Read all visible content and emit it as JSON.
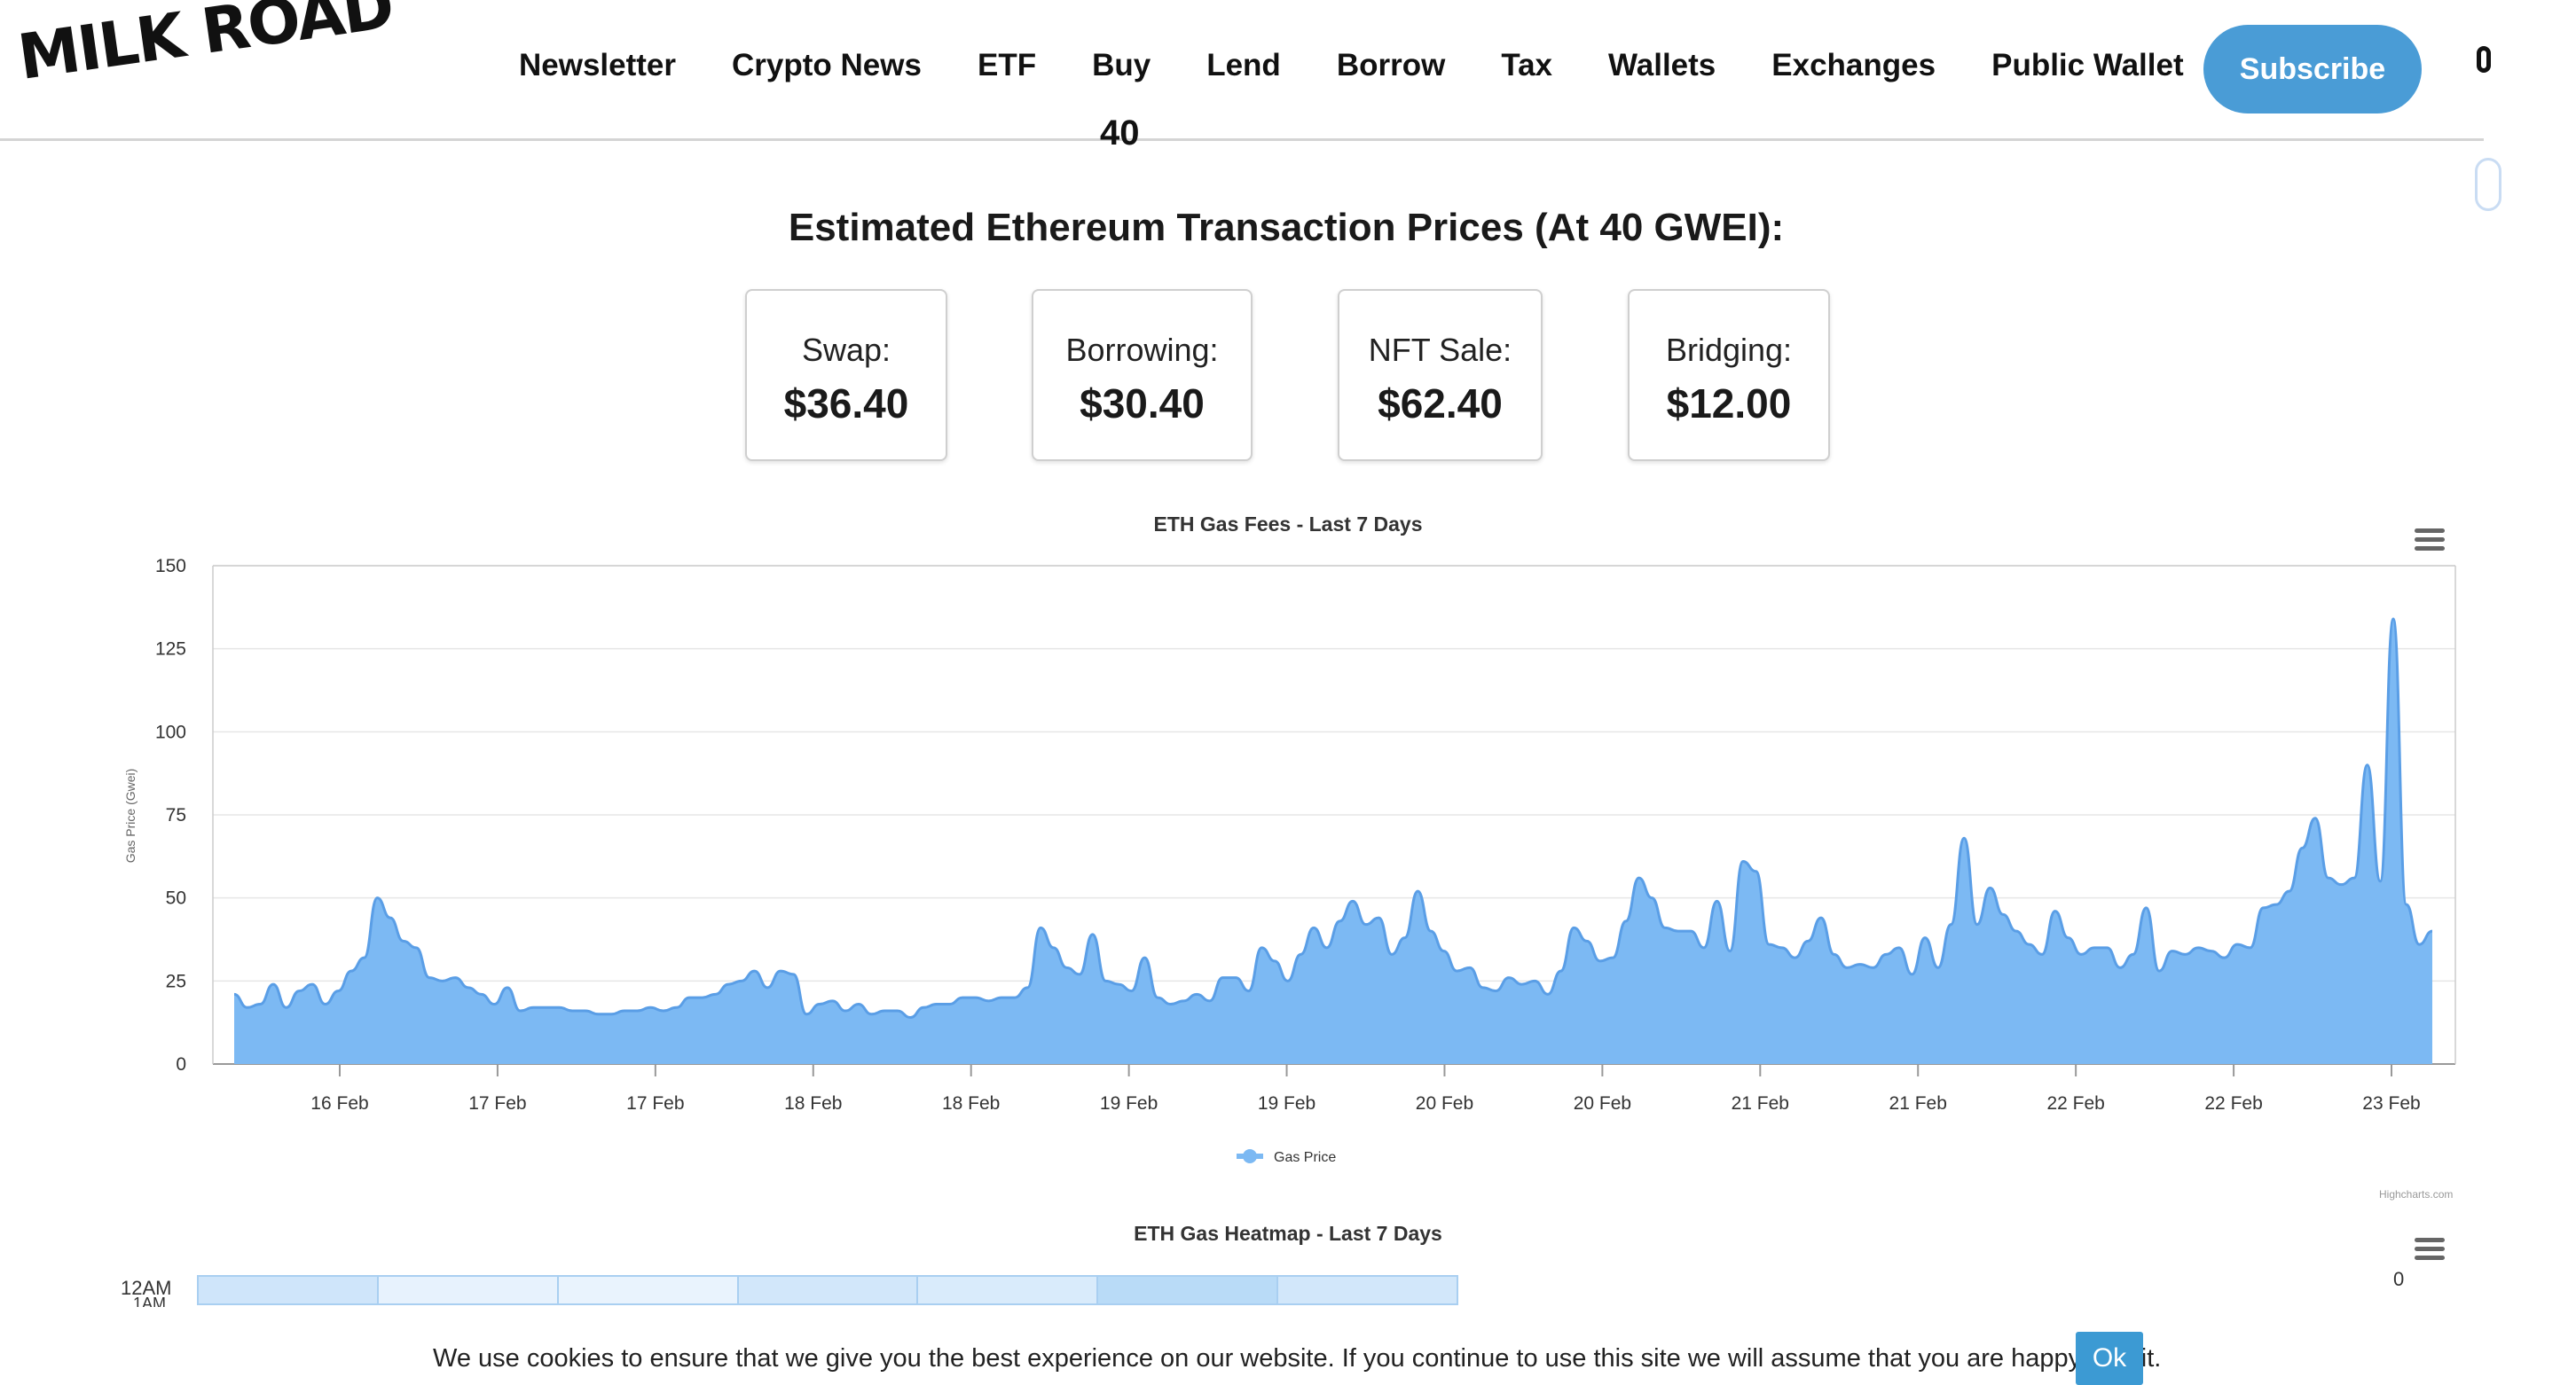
{
  "header": {
    "logo": "MILK ROAD",
    "nav": [
      "Newsletter",
      "Crypto News",
      "ETF",
      "Buy",
      "Lend",
      "Borrow",
      "Tax",
      "Wallets",
      "Exchanges",
      "Public Wallet"
    ],
    "subscribe_label": "Subscribe"
  },
  "cut_off_value": "40",
  "estimates": {
    "title": "Estimated Ethereum Transaction Prices (At 40 GWEI):",
    "cards": [
      {
        "label": "Swap:",
        "value": "$36.40"
      },
      {
        "label": "Borrowing:",
        "value": "$30.40"
      },
      {
        "label": "NFT Sale:",
        "value": "$62.40"
      },
      {
        "label": "Bridging:",
        "value": "$12.00"
      }
    ]
  },
  "chart_data": {
    "type": "area",
    "title": "ETH Gas Fees - Last 7 Days",
    "ylabel": "Gas Price (Gwei)",
    "xlabel": "",
    "ylim": [
      0,
      150
    ],
    "yticks": [
      0,
      25,
      50,
      75,
      100,
      125,
      150
    ],
    "xticks": [
      "16 Feb",
      "17 Feb",
      "17 Feb",
      "18 Feb",
      "18 Feb",
      "19 Feb",
      "19 Feb",
      "20 Feb",
      "20 Feb",
      "21 Feb",
      "21 Feb",
      "22 Feb",
      "22 Feb",
      "23 Feb"
    ],
    "grid": true,
    "legend_position": "bottom-center",
    "color": "#7cb9f3",
    "line_color": "#5a9ee6",
    "series": [
      {
        "name": "Gas Price",
        "x_range": [
          "15 Feb",
          "23 Feb"
        ],
        "values": [
          21,
          17,
          18,
          24,
          17,
          22,
          24,
          18,
          22,
          28,
          32,
          50,
          44,
          37,
          35,
          26,
          25,
          26,
          23,
          21,
          18,
          23,
          16,
          17,
          17,
          17,
          16,
          16,
          15,
          15,
          16,
          16,
          17,
          16,
          17,
          20,
          20,
          21,
          24,
          25,
          28,
          23,
          28,
          27,
          15,
          18,
          19,
          16,
          18,
          15,
          16,
          16,
          14,
          17,
          18,
          18,
          20,
          20,
          19,
          20,
          20,
          23,
          41,
          35,
          29,
          27,
          39,
          25,
          24,
          22,
          32,
          20,
          18,
          19,
          21,
          19,
          26,
          26,
          22,
          35,
          31,
          25,
          33,
          41,
          35,
          43,
          49,
          42,
          44,
          33,
          38,
          52,
          40,
          34,
          28,
          29,
          23,
          22,
          26,
          24,
          25,
          21,
          28,
          41,
          37,
          31,
          32,
          43,
          56,
          50,
          41,
          40,
          40,
          35,
          49,
          34,
          61,
          58,
          36,
          35,
          32,
          37,
          44,
          33,
          29,
          30,
          29,
          33,
          35,
          27,
          38,
          29,
          42,
          68,
          42,
          53,
          45,
          40,
          36,
          33,
          46,
          38,
          33,
          35,
          35,
          29,
          33,
          47,
          28,
          34,
          33,
          35,
          34,
          32,
          36,
          35,
          47,
          48,
          52,
          65,
          74,
          56,
          54,
          56,
          90,
          55,
          134,
          48,
          36,
          40
        ]
      }
    ]
  },
  "credit": "Highcharts.com",
  "heatmap": {
    "title": "ETH Gas Heatmap - Last 7 Days",
    "row_label": "12AM",
    "next_row_label": "1AM",
    "scale_min": "0",
    "cells": [
      "#cfe5fa",
      "#e7f2fd",
      "#e9f3fd",
      "#d2e7fa",
      "#d9ebfb",
      "#b9dbf7",
      "#d2e7fa"
    ]
  },
  "cookie": {
    "text": "We use cookies to ensure that we give you the best experience on our website. If you continue to use this site we will assume that you are happy with it.",
    "ok_label": "Ok"
  }
}
